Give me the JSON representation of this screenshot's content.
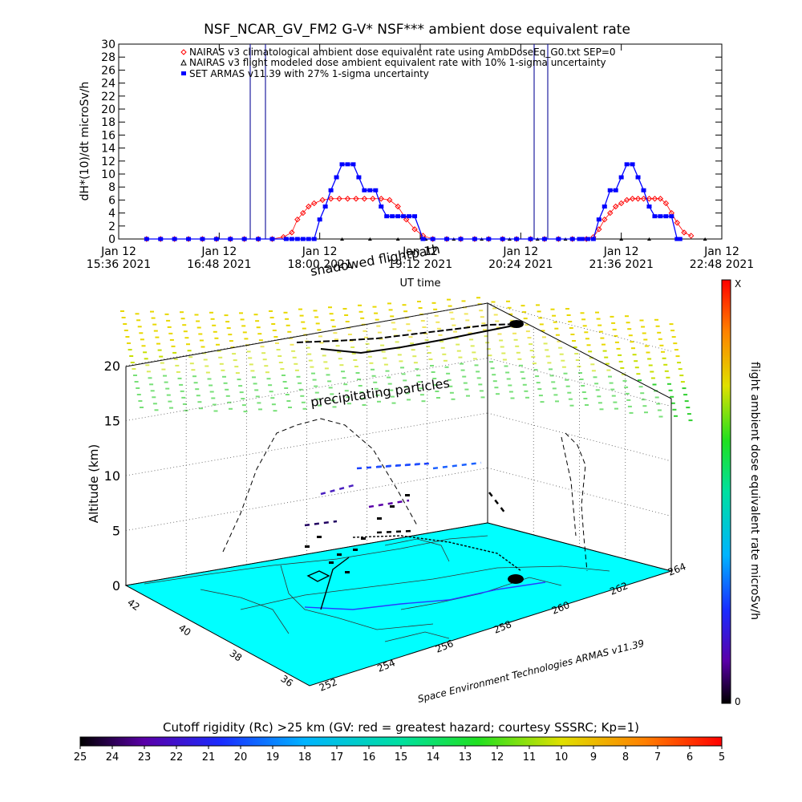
{
  "chart_data": [
    {
      "type": "line",
      "title": "NSF_NCAR_GV_FM2 G-V* NSF*** ambient dose equivalent rate",
      "ylabel": "dH*(10)/dt microSv/h",
      "xlabel": "UT time",
      "ylim": [
        0,
        30
      ],
      "yticks": [
        0,
        2,
        4,
        6,
        8,
        10,
        12,
        14,
        16,
        18,
        20,
        22,
        24,
        26,
        28,
        30
      ],
      "x_ticks": [
        {
          "t": 0,
          "line1": "Jan 12",
          "line2": "15:36 2021"
        },
        {
          "t": 72,
          "line1": "Jan 12",
          "line2": "16:48 2021"
        },
        {
          "t": 144,
          "line1": "Jan 12",
          "line2": "18:00 2021"
        },
        {
          "t": 216,
          "line1": "Jan 12",
          "line2": "19:12 2021"
        },
        {
          "t": 288,
          "line1": "Jan 12",
          "line2": "20:24 2021"
        },
        {
          "t": 360,
          "line1": "Jan 12",
          "line2": "21:36 2021"
        },
        {
          "t": 432,
          "line1": "Jan 12",
          "line2": "22:48 2021"
        }
      ],
      "xlim": [
        0,
        432
      ],
      "x_unit": "minutes after Jan 12 15:36 2021",
      "legend_position": "top-left",
      "series": [
        {
          "name": "NAIRAS v3 climatological ambient dose equivalent rate using AmbDoseEq_G0.txt SEP=0",
          "color": "#ff0000",
          "marker": "diamond",
          "x": [
            20,
            30,
            40,
            50,
            60,
            70,
            80,
            90,
            100,
            110,
            118,
            124,
            128,
            132,
            136,
            140,
            146,
            152,
            158,
            164,
            170,
            176,
            182,
            188,
            194,
            200,
            206,
            212,
            218,
            225,
            235,
            245,
            255,
            265,
            275,
            285,
            295,
            305,
            315,
            325,
            335,
            340,
            344,
            348,
            352,
            356,
            360,
            364,
            368,
            372,
            376,
            380,
            384,
            388,
            392,
            396,
            400,
            405,
            410
          ],
          "y": [
            0,
            0,
            0,
            0,
            0,
            0,
            0,
            0,
            0,
            0,
            0.3,
            1,
            3,
            4,
            5,
            5.5,
            6,
            6.2,
            6.2,
            6.2,
            6.2,
            6.2,
            6.2,
            6.2,
            6,
            5,
            3,
            1.5,
            0.5,
            0,
            0,
            0,
            0,
            0,
            0,
            0,
            0,
            0,
            0,
            0,
            0,
            0.3,
            1.5,
            3,
            4,
            5,
            5.5,
            6,
            6.2,
            6.2,
            6.2,
            6.2,
            6.2,
            6.2,
            5.5,
            4,
            2.5,
            1,
            0.5
          ]
        },
        {
          "name": "NAIRAS v3 flight modeled dose ambient equivalent rate with 10% 1-sigma uncertainty",
          "color": "#000000",
          "marker": "triangle",
          "x": [
            20,
            40,
            60,
            80,
            100,
            120,
            140,
            160,
            180,
            200,
            220,
            240,
            260,
            280,
            300,
            320,
            340,
            360,
            380,
            400,
            420
          ],
          "y": [
            0,
            0,
            0,
            0,
            0,
            0,
            0,
            0,
            0,
            0,
            0,
            0,
            0,
            0,
            0,
            0,
            0,
            0,
            0,
            0,
            0
          ]
        },
        {
          "name": "SET ARMAS v11.39 with 27% 1-sigma uncertainty",
          "color": "#0000ff",
          "marker": "square",
          "x": [
            20,
            30,
            40,
            50,
            60,
            70,
            80,
            90,
            100,
            110,
            120,
            124,
            128,
            132,
            136,
            140,
            144,
            148,
            152,
            156,
            160,
            164,
            168,
            172,
            176,
            180,
            184,
            188,
            192,
            196,
            200,
            204,
            208,
            212,
            218,
            225,
            235,
            245,
            255,
            265,
            275,
            285,
            295,
            305,
            315,
            325,
            330,
            332,
            336,
            340,
            344,
            348,
            352,
            356,
            360,
            364,
            368,
            372,
            376,
            380,
            384,
            388,
            392,
            396,
            400,
            402
          ],
          "y": [
            0,
            0,
            0,
            0,
            0,
            0,
            0,
            0,
            0,
            0,
            0,
            0,
            0,
            0,
            0,
            0,
            3,
            5,
            7.5,
            9.5,
            11.5,
            11.5,
            11.5,
            9.5,
            7.5,
            7.5,
            7.5,
            5,
            3.5,
            3.5,
            3.5,
            3.5,
            3.5,
            3.5,
            0,
            0,
            0,
            0,
            0,
            0,
            0,
            0,
            0,
            0,
            0,
            0,
            0,
            0,
            0,
            0,
            3,
            5,
            7.5,
            7.5,
            9.5,
            11.5,
            11.5,
            9.5,
            7.5,
            5,
            3.5,
            3.5,
            3.5,
            3.5,
            0,
            0
          ]
        }
      ]
    },
    {
      "type": "scatter",
      "view": "3d-perspective",
      "zlabel": "Altitude (km)",
      "zlim": [
        0,
        20
      ],
      "zticks": [
        0,
        5,
        10,
        15,
        20
      ],
      "lon_ticks": [
        252,
        254,
        256,
        258,
        260,
        262,
        264
      ],
      "lat_ticks": [
        36,
        38,
        40,
        42
      ],
      "annotations": [
        "shadowed flightpath",
        "precipitating particles"
      ],
      "credit": "Space Environment Technologies ARMAS v11.39",
      "colorbar": {
        "label": "flight ambient dose equivalent rate microSv/h",
        "top_label": "X",
        "bottom_label": "0"
      }
    },
    {
      "type": "colorbar",
      "title": "Cutoff rigidity (Rc) >25 km (GV: red = greatest hazard; courtesy SSSRC; Kp=1)",
      "ticks": [
        25,
        24,
        23,
        22,
        21,
        20,
        19,
        18,
        17,
        16,
        15,
        14,
        13,
        12,
        11,
        10,
        9,
        8,
        7,
        6,
        5
      ]
    }
  ]
}
